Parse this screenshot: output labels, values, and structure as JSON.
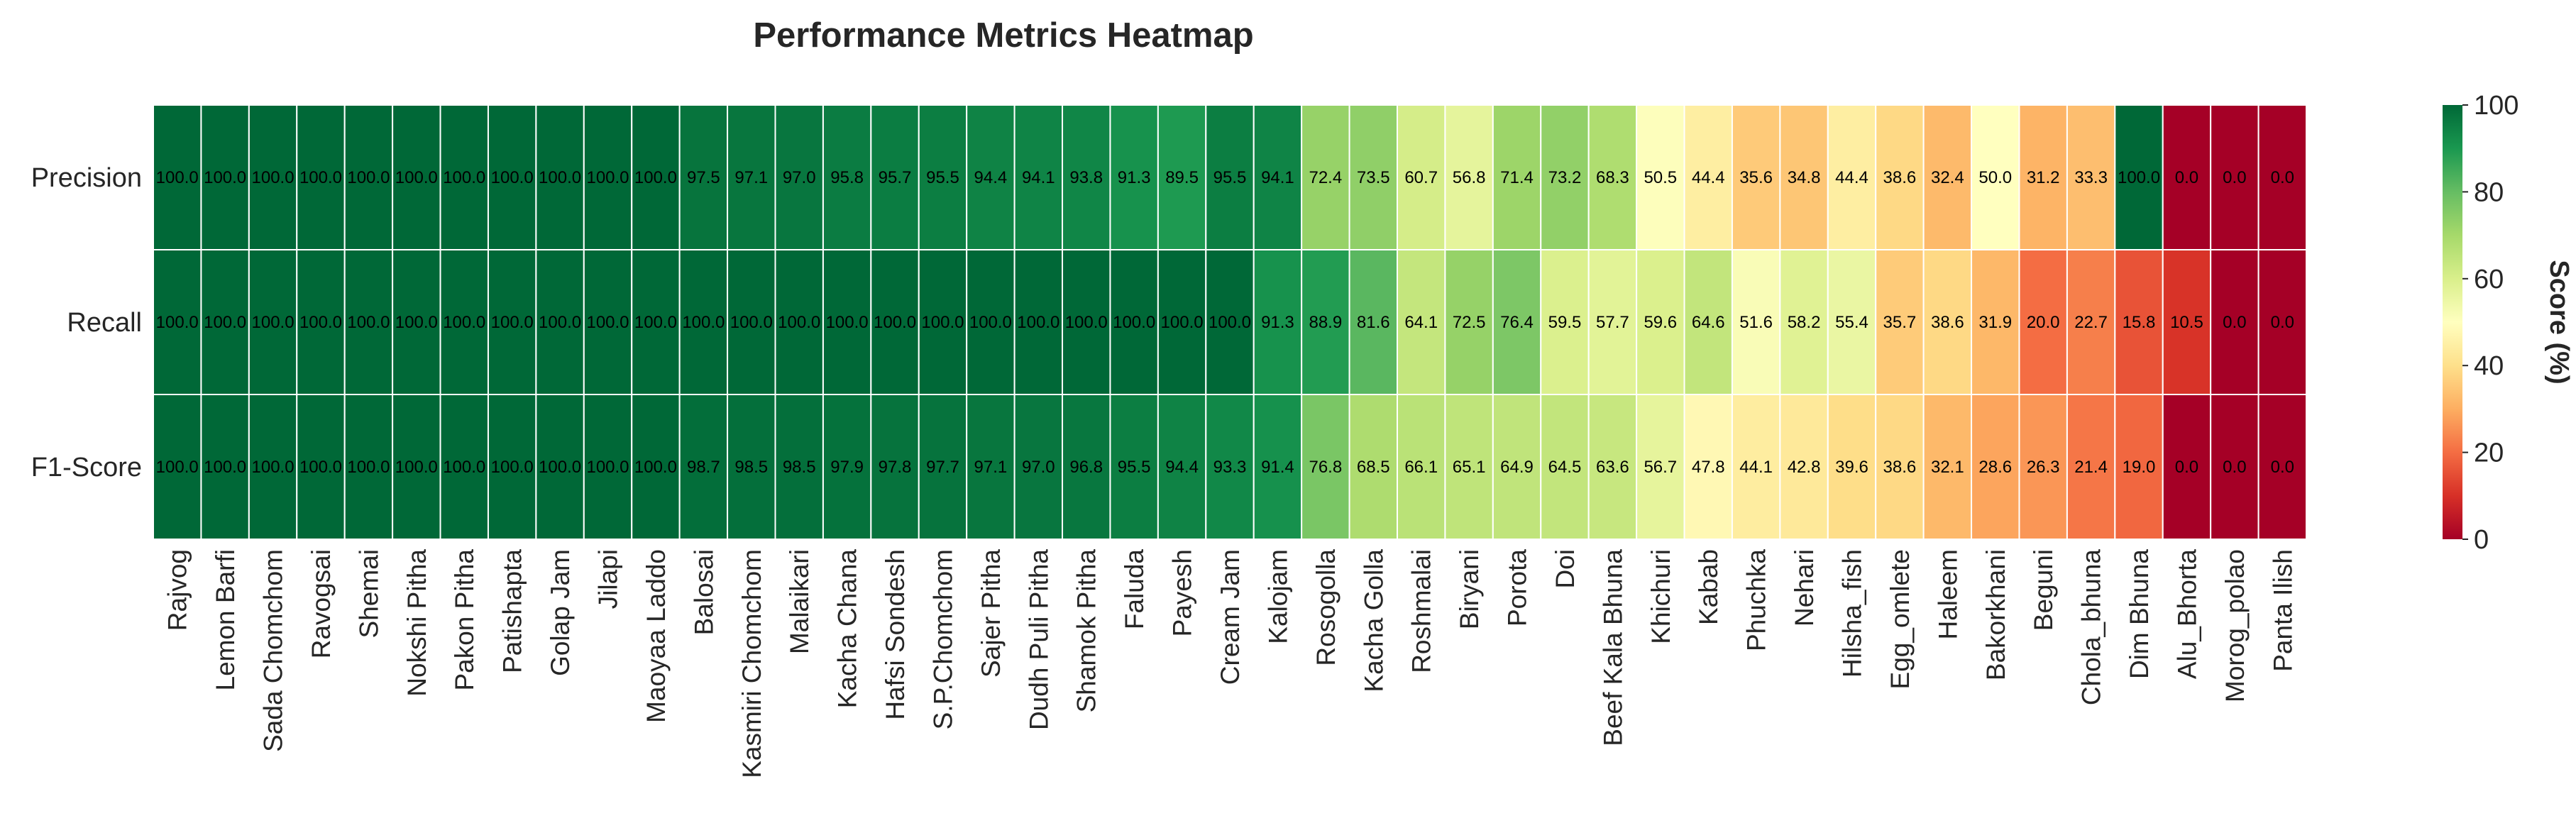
{
  "chart_data": {
    "type": "heatmap",
    "title": "Performance Metrics Heatmap",
    "rows": [
      "Precision",
      "Recall",
      "F1-Score"
    ],
    "columns": [
      "Rajvog",
      "Lemon Barfi",
      "Sada Chomchom",
      "Ravogsai",
      "Shemai",
      "Nokshi Pitha",
      "Pakon Pitha",
      "Patishapta",
      "Golap Jam",
      "Jilapi",
      "Maoyaa Laddo",
      "Balosai",
      "Kasmiri Chomchom",
      "Malaikari",
      "Kacha  Chana",
      "Hafsi Sondesh",
      "S.P.Chomchom",
      "Sajer Pitha",
      "Dudh Puli Pitha",
      "Shamok Pitha",
      "Faluda",
      "Payesh",
      "Cream Jam",
      "Kalojam",
      "Rosogolla",
      "Kacha Golla",
      "Roshmalai",
      "Biryani",
      "Porota",
      "Doi",
      "Beef Kala Bhuna",
      "Khichuri",
      "Kabab",
      "Phuchka",
      "Nehari",
      "Hilsha_fish",
      "Egg_omlete",
      "Haleem",
      "Bakorkhani",
      "Beguni",
      "Chola_bhuna",
      "Dim Bhuna",
      "Alu_Bhorta",
      "Morog_polao",
      "Panta Ilish"
    ],
    "values": [
      [
        100.0,
        100.0,
        100.0,
        100.0,
        100.0,
        100.0,
        100.0,
        100.0,
        100.0,
        100.0,
        100.0,
        97.5,
        97.1,
        97.0,
        95.8,
        95.7,
        95.5,
        94.4,
        94.1,
        93.8,
        91.3,
        89.5,
        95.5,
        94.1,
        72.4,
        73.5,
        60.7,
        56.8,
        71.4,
        73.2,
        68.3,
        50.5,
        44.4,
        35.6,
        34.8,
        44.4,
        38.6,
        32.4,
        50.0,
        31.2,
        33.3,
        100.0,
        0.0,
        0.0,
        0.0
      ],
      [
        100.0,
        100.0,
        100.0,
        100.0,
        100.0,
        100.0,
        100.0,
        100.0,
        100.0,
        100.0,
        100.0,
        100.0,
        100.0,
        100.0,
        100.0,
        100.0,
        100.0,
        100.0,
        100.0,
        100.0,
        100.0,
        100.0,
        100.0,
        91.3,
        88.9,
        81.6,
        64.1,
        72.5,
        76.4,
        59.5,
        57.7,
        59.6,
        64.6,
        51.6,
        58.2,
        55.4,
        35.7,
        38.6,
        31.9,
        20.0,
        22.7,
        15.8,
        10.5,
        0.0,
        0.0
      ],
      [
        100.0,
        100.0,
        100.0,
        100.0,
        100.0,
        100.0,
        100.0,
        100.0,
        100.0,
        100.0,
        100.0,
        98.7,
        98.5,
        98.5,
        97.9,
        97.8,
        97.7,
        97.1,
        97.0,
        96.8,
        95.5,
        94.4,
        93.3,
        91.4,
        76.8,
        68.5,
        66.1,
        65.1,
        64.9,
        64.5,
        63.6,
        56.7,
        47.8,
        44.1,
        42.8,
        39.6,
        38.6,
        32.1,
        28.6,
        26.3,
        21.4,
        19.0,
        0.0,
        0.0,
        0.0
      ]
    ],
    "labels": [
      [
        "100.0",
        "100.0",
        "100.0",
        "100.0",
        "100.0",
        "100.0",
        "100.0",
        "100.0",
        "100.0",
        "100.0",
        "100.0",
        "97.5",
        "97.1",
        "97.0",
        "95.8",
        "95.7",
        "95.5",
        "94.4",
        "94.1",
        "93.8",
        "91.3",
        "89.5",
        "95.5",
        "94.1",
        "72.4",
        "73.5",
        "60.7",
        "56.8",
        "71.4",
        "73.2",
        "68.3",
        "50.5",
        "44.4",
        "35.6",
        "34.8",
        "44.4",
        "38.6",
        "32.4",
        "50.0",
        "31.2",
        "33.3",
        "100.0",
        "0.0",
        "0.0",
        "0.0"
      ],
      [
        "100.0",
        "100.0",
        "100.0",
        "100.0",
        "100.0",
        "100.0",
        "100.0",
        "100.0",
        "100.0",
        "100.0",
        "100.0",
        "100.0",
        "100.0",
        "100.0",
        "100.0",
        "100.0",
        "100.0",
        "100.0",
        "100.0",
        "100.0",
        "100.0",
        "100.0",
        "100.0",
        "91.3",
        "88.9",
        "81.6",
        "64.1",
        "72.5",
        "76.4",
        "59.5",
        "57.7",
        "59.6",
        "64.6",
        "51.6",
        "58.2",
        "55.4",
        "35.7",
        "38.6",
        "31.9",
        "20.0",
        "22.7",
        "15.8",
        "10.5",
        "0.0",
        "0.0"
      ],
      [
        "100.0",
        "100.0",
        "100.0",
        "100.0",
        "100.0",
        "100.0",
        "100.0",
        "100.0",
        "100.0",
        "100.0",
        "100.0",
        "98.7",
        "98.5",
        "98.5",
        "97.9",
        "97.8",
        "97.7",
        "97.1",
        "97.0",
        "96.8",
        "95.5",
        "94.4",
        "93.3",
        "91.4",
        "76.8",
        "68.5",
        "66.1",
        "65.1",
        "64.9",
        "64.5",
        "63.6",
        "56.7",
        "47.8",
        "44.1",
        "42.8",
        "39.6",
        "38.6",
        "32.1",
        "28.6",
        "26.3",
        "21.4",
        "19.0",
        "0.0",
        "0.0",
        "0.0"
      ]
    ],
    "colormap": "RdYlGn",
    "colorbar": {
      "label": "Score (%)",
      "range": [
        0,
        100
      ],
      "ticks": [
        "0",
        "20",
        "40",
        "60",
        "80",
        "100"
      ]
    },
    "grid": false,
    "cell_borders": "white"
  }
}
